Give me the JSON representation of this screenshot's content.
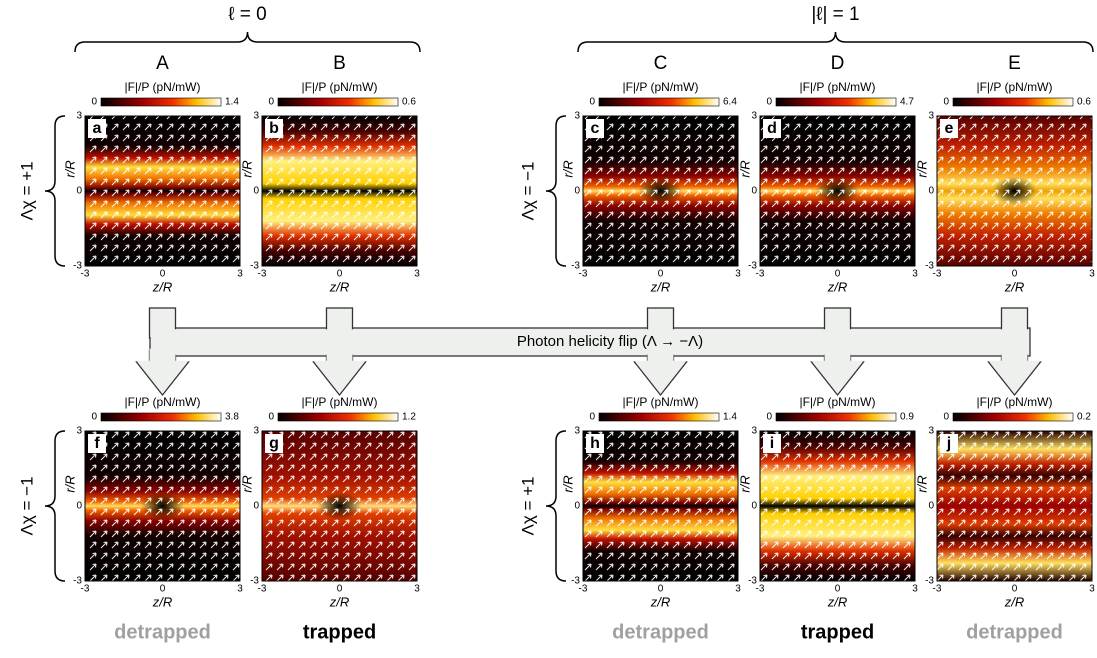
{
  "groups": [
    {
      "label": "ℓ = 0"
    },
    {
      "label": "|ℓ| = 1"
    }
  ],
  "columns": [
    "A",
    "B",
    "C",
    "D",
    "E"
  ],
  "row_labels": {
    "top": [
      "Λχ = +1",
      "Λχ = −1"
    ],
    "bottom": [
      "Λχ = −1",
      "Λχ = +1"
    ]
  },
  "colorbar_label": "|F|/P (pN/mW)",
  "colorbar_min": 0,
  "axis_ticks": [
    -3,
    0,
    3
  ],
  "x_label": "z/R",
  "y_label": "r/R",
  "panels": [
    {
      "letter": "a",
      "max": 1.4
    },
    {
      "letter": "b",
      "max": 0.6
    },
    {
      "letter": "c",
      "max": 6.4
    },
    {
      "letter": "d",
      "max": 4.7
    },
    {
      "letter": "e",
      "max": 0.6
    },
    {
      "letter": "f",
      "max": 3.8
    },
    {
      "letter": "g",
      "max": 1.2
    },
    {
      "letter": "h",
      "max": 1.4
    },
    {
      "letter": "i",
      "max": 0.9
    },
    {
      "letter": "j",
      "max": 0.2
    }
  ],
  "flip_label": "Photon helicity flip (Λ → −Λ)",
  "outcomes": [
    "detrapped",
    "trapped",
    "detrapped",
    "trapped",
    "detrapped"
  ]
}
